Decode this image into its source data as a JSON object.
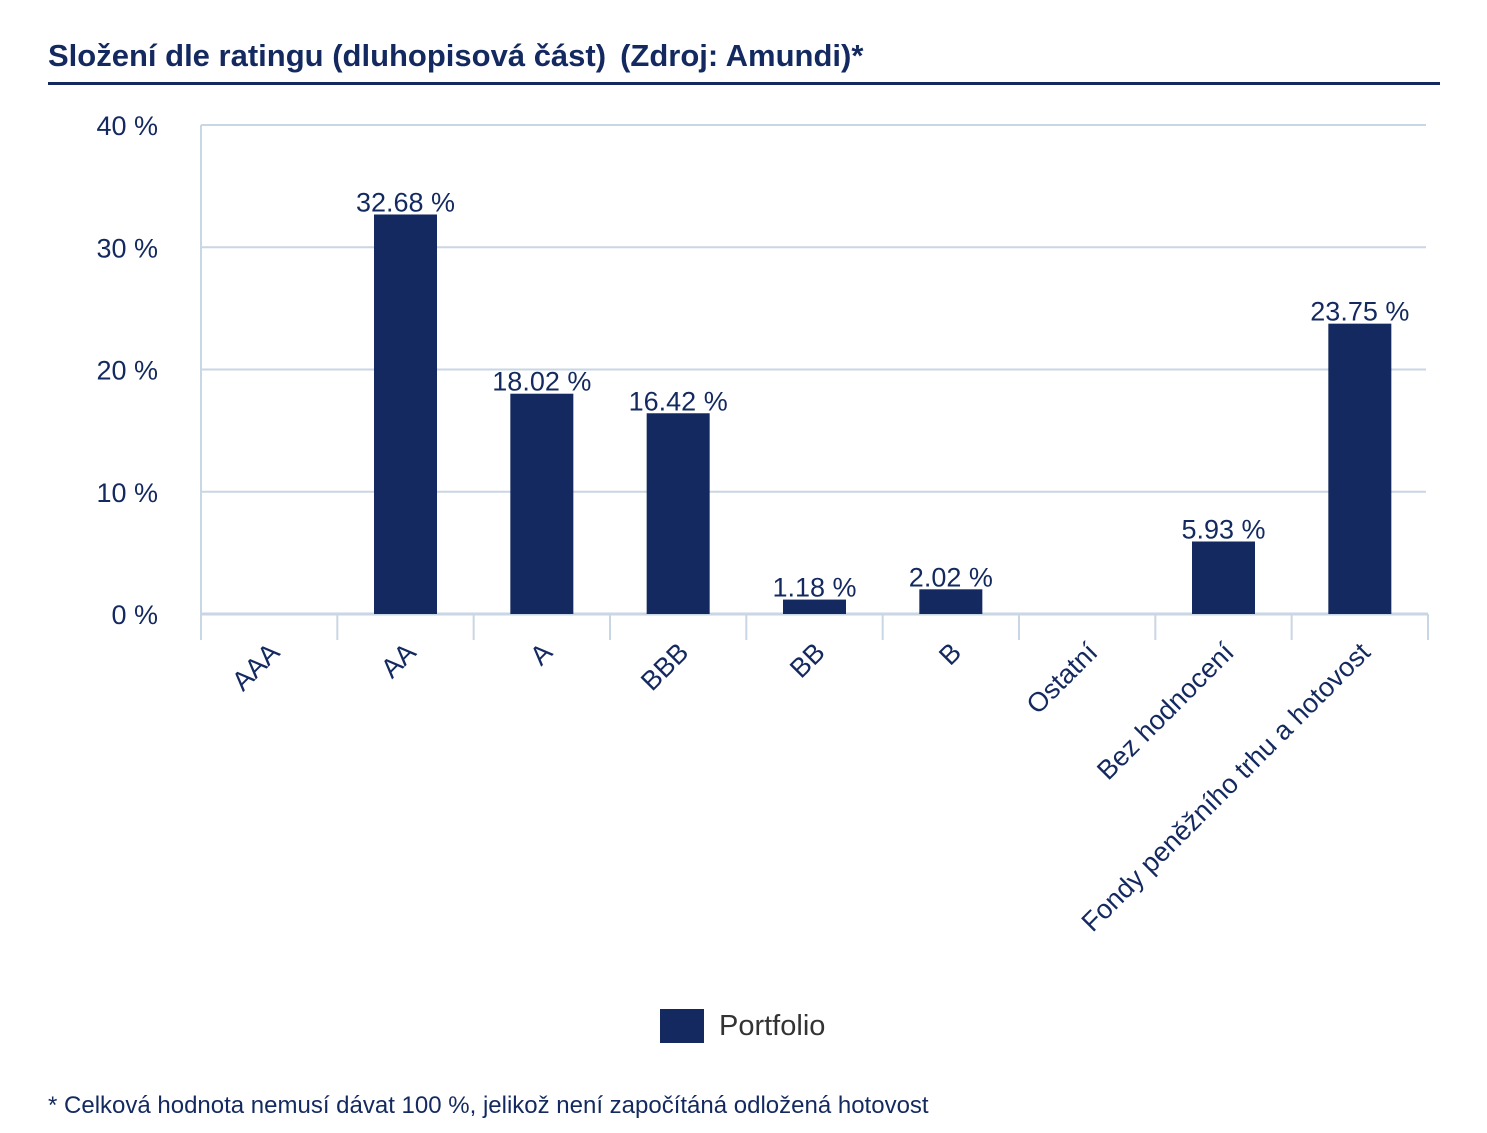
{
  "header": {
    "title": "Složení dle ratingu (dluhopisová část)",
    "source": "(Zdroj: Amundi)*"
  },
  "chart_data": {
    "type": "bar",
    "title": "Složení dle ratingu (dluhopisová část)",
    "categories": [
      "AAA",
      "AA",
      "A",
      "BBB",
      "BB",
      "B",
      "Ostatní",
      "Bez hodnocení",
      "Fondy peněžního trhu a hotovost"
    ],
    "series": [
      {
        "name": "Portfolio",
        "values": [
          null,
          32.68,
          18.02,
          16.42,
          1.18,
          2.02,
          null,
          5.93,
          23.75
        ],
        "labels": [
          "",
          "32.68 %",
          "18.02 %",
          "16.42 %",
          "1.18 %",
          "2.02 %",
          "",
          "5.93 %",
          "23.75 %"
        ]
      }
    ],
    "ylim": [
      0,
      40
    ],
    "yticks": [
      0,
      10,
      20,
      30,
      40
    ],
    "ytick_labels": [
      "0 %",
      "10 %",
      "20 %",
      "30 %",
      "40 %"
    ],
    "xlabel": "",
    "ylabel": "",
    "grid": true,
    "legend_position": "bottom-center",
    "bar_color": "#13295f",
    "grid_color": "#c9d6e3"
  },
  "legend": {
    "label": "Portfolio"
  },
  "footnote": {
    "text": "* Celková hodnota nemusí dávat 100 %, jelikož není započítáná odložená hotovost"
  }
}
